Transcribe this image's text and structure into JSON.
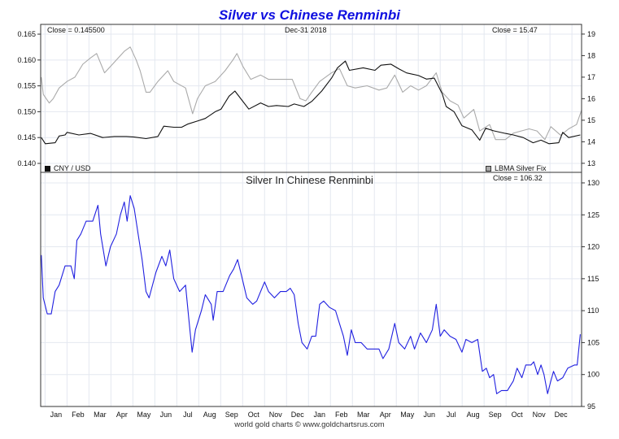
{
  "chart_data": [
    {
      "type": "line",
      "title": "Silver vs Chinese Renminbi",
      "date_label": "Dec-31  2018",
      "left_close": "Close = 0.145500",
      "right_close": "Close = 15.47",
      "x_unit": "months (0 = Jan 2017 label)",
      "xlim": [
        -0.7,
        23.94
      ],
      "ylim_left": [
        0.13827,
        0.16689
      ],
      "ylim_right": [
        12.58,
        19.45
      ],
      "left_ticks": [
        "0.140",
        "0.145",
        "0.150",
        "0.155",
        "0.160",
        "0.165"
      ],
      "right_ticks": [
        "13",
        "14",
        "15",
        "16",
        "17",
        "18",
        "19"
      ],
      "grid": true,
      "legend": [
        {
          "name": "CNY / USD",
          "color": "#111111",
          "placement": "bottom-left"
        },
        {
          "name": "LBMA Silver Fix",
          "color": "#aaaaaa",
          "placement": "bottom-right"
        }
      ],
      "series": [
        {
          "name": "CNY / USD",
          "axis": "left",
          "color": "#111111",
          "x": [
            -0.67,
            -0.49,
            -0.04,
            0.14,
            0.41,
            0.5,
            1.04,
            1.58,
            2.12,
            2.66,
            3.2,
            3.56,
            4.1,
            4.64,
            4.91,
            5.36,
            5.72,
            5.99,
            6.44,
            6.8,
            7.25,
            7.52,
            7.88,
            8.15,
            8.42,
            8.78,
            9.32,
            9.68,
            10.04,
            10.58,
            10.85,
            11.29,
            11.65,
            12.1,
            12.55,
            12.82,
            13.18,
            13.36,
            13.99,
            14.53,
            14.8,
            15.25,
            15.61,
            15.97,
            16.51,
            16.87,
            17.23,
            17.59,
            17.77,
            18.13,
            18.49,
            18.94,
            19.3,
            19.57,
            19.93,
            20.47,
            20.83,
            21.28,
            21.73,
            22.09,
            22.45,
            22.9,
            23.08,
            23.35,
            23.88
          ],
          "y": [
            0.145,
            0.1438,
            0.144,
            0.1453,
            0.1455,
            0.146,
            0.1455,
            0.1458,
            0.145,
            0.1452,
            0.1452,
            0.1451,
            0.1448,
            0.1452,
            0.1472,
            0.147,
            0.147,
            0.1476,
            0.1482,
            0.1487,
            0.15,
            0.1505,
            0.153,
            0.154,
            0.1525,
            0.1505,
            0.1517,
            0.151,
            0.1512,
            0.151,
            0.1515,
            0.151,
            0.152,
            0.154,
            0.1565,
            0.1585,
            0.1598,
            0.158,
            0.1585,
            0.158,
            0.159,
            0.1592,
            0.1583,
            0.1575,
            0.157,
            0.1563,
            0.1565,
            0.1535,
            0.151,
            0.15,
            0.1473,
            0.1465,
            0.1445,
            0.1468,
            0.1463,
            0.1458,
            0.1455,
            0.145,
            0.144,
            0.1445,
            0.1438,
            0.144,
            0.146,
            0.145,
            0.1455
          ]
        },
        {
          "name": "LBMA Silver Fix",
          "axis": "right",
          "color": "#aaaaaa",
          "x": [
            -0.67,
            -0.58,
            -0.31,
            -0.13,
            0.14,
            0.5,
            0.86,
            1.22,
            1.58,
            1.85,
            2.21,
            2.48,
            2.75,
            3.11,
            3.38,
            3.65,
            3.83,
            4.1,
            4.28,
            4.64,
            5.09,
            5.36,
            5.9,
            6.22,
            6.44,
            6.8,
            7.25,
            7.7,
            8.06,
            8.24,
            8.51,
            8.87,
            9.32,
            9.68,
            10.04,
            10.76,
            11.12,
            11.38,
            11.65,
            12.01,
            12.55,
            12.91,
            13.27,
            13.63,
            14.17,
            14.71,
            15.07,
            15.43,
            15.79,
            16.15,
            16.51,
            16.87,
            17.32,
            17.59,
            17.95,
            18.31,
            18.58,
            19.03,
            19.3,
            19.75,
            20.02,
            20.47,
            20.83,
            21.19,
            21.55,
            21.91,
            22.27,
            22.54,
            22.99,
            23.35,
            23.71,
            23.94
          ],
          "y": [
            17.0,
            16.2,
            15.8,
            16.0,
            16.5,
            16.8,
            17.0,
            17.6,
            17.9,
            18.1,
            17.2,
            17.5,
            17.8,
            18.2,
            18.4,
            17.8,
            17.3,
            16.3,
            16.3,
            16.8,
            17.3,
            16.8,
            16.5,
            15.3,
            16.0,
            16.6,
            16.8,
            17.3,
            17.8,
            18.1,
            17.5,
            16.9,
            17.1,
            16.9,
            16.9,
            16.9,
            16.0,
            15.9,
            16.3,
            16.8,
            17.2,
            17.4,
            16.6,
            16.5,
            16.6,
            16.4,
            16.5,
            17.1,
            16.3,
            16.6,
            16.4,
            16.6,
            17.2,
            16.3,
            15.9,
            15.7,
            15.1,
            15.5,
            14.5,
            14.8,
            14.1,
            14.1,
            14.4,
            14.5,
            14.6,
            14.5,
            14.1,
            14.7,
            14.3,
            14.6,
            14.8,
            15.47
          ]
        }
      ]
    },
    {
      "type": "line",
      "title": "Silver In Chinese Renminbi",
      "close": "Close = 106.32",
      "xlim": [
        -0.7,
        23.94
      ],
      "ylim": [
        95,
        131.65
      ],
      "right_ticks": [
        "95",
        "100",
        "105",
        "110",
        "115",
        "120",
        "125",
        "130"
      ],
      "x_tick_labels": [
        "Jan",
        "Feb",
        "Mar",
        "Apr",
        "May",
        "Jun",
        "Jul",
        "Aug",
        "Sep",
        "Oct",
        "Nov",
        "Dec",
        "Jan",
        "Feb",
        "Mar",
        "Apr",
        "May",
        "Jun",
        "Jul",
        "Aug",
        "Sep",
        "Oct",
        "Nov",
        "Dec"
      ],
      "grid": true,
      "series": [
        {
          "name": "Silver in CNY",
          "color": "#2020e0",
          "x": [
            -0.67,
            -0.58,
            -0.4,
            -0.22,
            -0.04,
            0.14,
            0.41,
            0.68,
            0.83,
            0.95,
            1.13,
            1.37,
            1.67,
            1.91,
            2.03,
            2.27,
            2.48,
            2.75,
            2.93,
            3.11,
            3.24,
            3.38,
            3.56,
            3.74,
            3.92,
            4.1,
            4.24,
            4.55,
            4.82,
            5.0,
            5.18,
            5.36,
            5.63,
            5.9,
            6.04,
            6.2,
            6.35,
            6.62,
            6.8,
            7.07,
            7.16,
            7.34,
            7.61,
            7.91,
            8.09,
            8.27,
            8.45,
            8.69,
            8.96,
            9.14,
            9.32,
            9.5,
            9.68,
            9.95,
            10.22,
            10.49,
            10.67,
            10.85,
            11.03,
            11.2,
            11.44,
            11.65,
            11.83,
            12.01,
            12.19,
            12.46,
            12.73,
            12.91,
            13.09,
            13.27,
            13.45,
            13.63,
            13.9,
            14.17,
            14.44,
            14.71,
            14.89,
            15.16,
            15.43,
            15.61,
            15.88,
            16.15,
            16.33,
            16.6,
            16.87,
            17.14,
            17.32,
            17.5,
            17.68,
            17.95,
            18.22,
            18.49,
            18.67,
            18.94,
            19.21,
            19.42,
            19.6,
            19.75,
            19.93,
            20.07,
            20.29,
            20.56,
            20.83,
            21.0,
            21.22,
            21.4,
            21.64,
            21.76,
            21.94,
            22.09,
            22.23,
            22.39,
            22.54,
            22.66,
            22.84,
            23.08,
            23.31,
            23.62,
            23.74,
            23.88
          ],
          "y": [
            118.7,
            112,
            109.5,
            109.5,
            113,
            114,
            117,
            117,
            115,
            121,
            122,
            124,
            124,
            126.5,
            122,
            117,
            120,
            122,
            125,
            127,
            124,
            128,
            126,
            122,
            118,
            113,
            112,
            116,
            118.5,
            117,
            119.5,
            115,
            113,
            114,
            109,
            103.5,
            107,
            110,
            112.5,
            111,
            108.5,
            113,
            113,
            115.5,
            116.5,
            118,
            115.5,
            112,
            111,
            111.5,
            113,
            114.5,
            113,
            112,
            113,
            113,
            113.5,
            112.5,
            108,
            105,
            104,
            106,
            106,
            111,
            111.5,
            110.5,
            110,
            108,
            106,
            103,
            107,
            105,
            105,
            104,
            104,
            104,
            102.5,
            104,
            108,
            105,
            104,
            106,
            104,
            106.5,
            105,
            107,
            111,
            106,
            107,
            106,
            105.5,
            103.5,
            105.5,
            105,
            105.5,
            100.5,
            101,
            99.5,
            100,
            97,
            97.5,
            97.5,
            99,
            101,
            99.5,
            101.5,
            101.5,
            102,
            100,
            101.5,
            100,
            97,
            99,
            100.5,
            99,
            99.5,
            101,
            101.5,
            101.5,
            106.3
          ]
        }
      ]
    }
  ],
  "footer": "world gold charts © www.goldchartsrus.com"
}
